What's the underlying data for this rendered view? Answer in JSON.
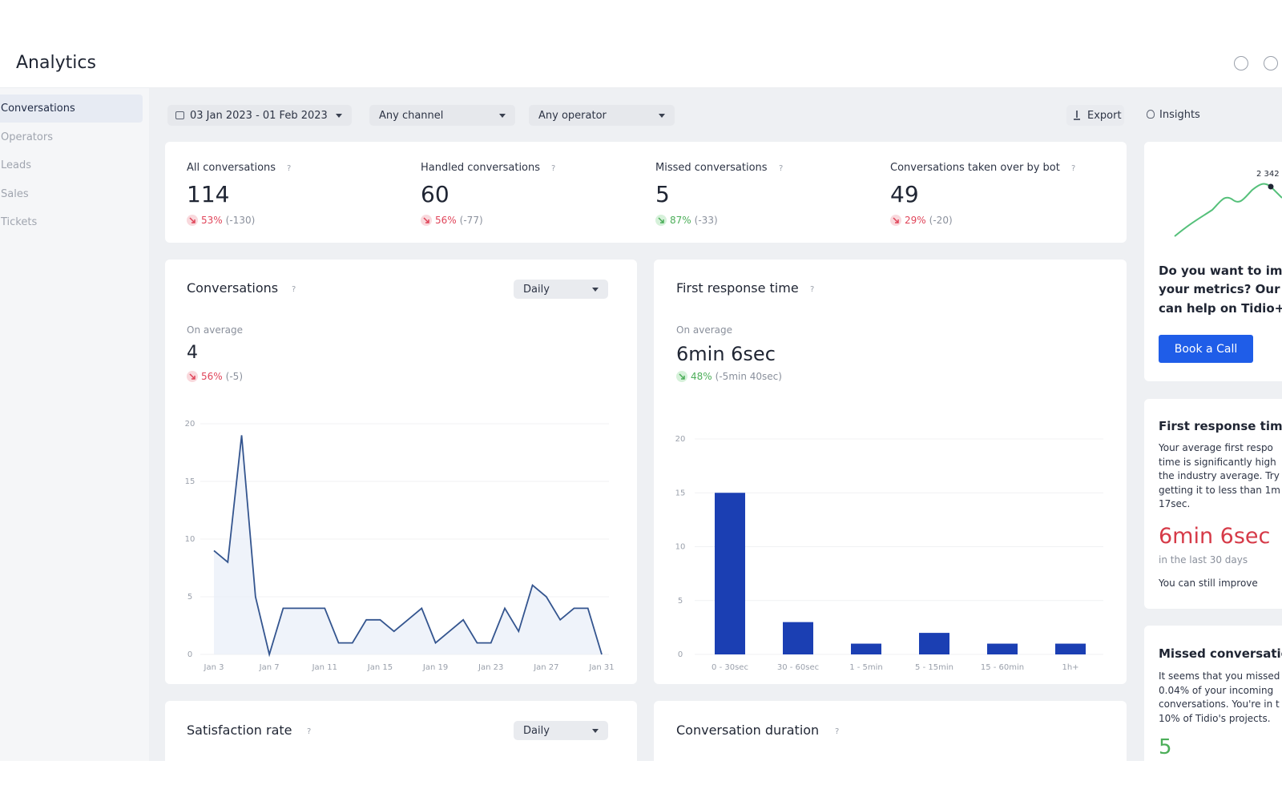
{
  "help": "?",
  "header": {
    "title": "Analytics"
  },
  "sidebar": {
    "items": [
      "Conversations",
      "Operators",
      "Leads",
      "Sales",
      "Tickets"
    ]
  },
  "filters": {
    "date": "03 Jan 2023 - 01 Feb 2023",
    "channel": "Any channel",
    "operator": "Any operator",
    "export": "Export",
    "insights": "Insights"
  },
  "kpis": [
    {
      "label": "All conversations",
      "value": 114,
      "pct": "53%",
      "change": "(-130)",
      "trend": "bad"
    },
    {
      "label": "Handled conversations",
      "value": 60,
      "pct": "56%",
      "change": "(-77)",
      "trend": "bad"
    },
    {
      "label": "Missed conversations",
      "value": 5,
      "pct": "87%",
      "change": "(-33)",
      "trend": "good"
    },
    {
      "label": "Conversations taken over by bot",
      "value": 49,
      "pct": "29%",
      "change": "(-20)",
      "trend": "bad"
    }
  ],
  "panels": [
    {
      "title": "Conversations",
      "dropdown": "Daily",
      "avg_label": "On average",
      "avg": "4",
      "pct": "56%",
      "change": "(-5)",
      "trend": "bad"
    },
    {
      "title": "First response time",
      "avg_label": "On average",
      "avg": "6min 6sec",
      "pct": "48%",
      "change": "(-5min 40sec)",
      "trend": "good"
    },
    {
      "title": "Satisfaction rate",
      "dropdown": "Daily"
    },
    {
      "title": "Conversation duration"
    }
  ],
  "insights": {
    "spark_label": "2 342",
    "promo_lines": [
      "Do you want to imp",
      "your metrics? Our t",
      "can help on Tidio+"
    ],
    "button": "Book a Call",
    "frt": {
      "title": "First response time",
      "lines": [
        "Your average first respo",
        "time is significantly high",
        "the industry average. Try",
        "getting it to less than 1m",
        "17sec."
      ],
      "value": "6min 6sec",
      "period": "in the last 30 days",
      "note": "You can still improve"
    },
    "missed": {
      "title": "Missed conversatio",
      "lines": [
        "It seems that you missed",
        "0.04% of your incoming",
        "conversations. You're in t",
        "10% of Tidio's projects."
      ],
      "value": "5"
    }
  },
  "chart_data": [
    {
      "type": "line",
      "color": "#34558f",
      "grid": true,
      "categories": [
        "Jan 3",
        null,
        null,
        null,
        "Jan 7",
        null,
        null,
        null,
        "Jan 11",
        null,
        null,
        null,
        "Jan 15",
        null,
        null,
        null,
        "Jan 19",
        null,
        null,
        null,
        "Jan 23",
        null,
        null,
        null,
        "Jan 27",
        null,
        null,
        null,
        "Jan 31"
      ],
      "values": [
        9,
        8,
        19,
        5,
        0,
        4,
        4,
        4,
        4,
        1,
        1,
        3,
        3,
        2,
        3,
        4,
        1,
        2,
        3,
        1,
        1,
        4,
        2,
        6,
        5,
        3,
        4,
        4,
        0
      ],
      "ylim": [
        0,
        20
      ],
      "yticks": [
        0,
        5,
        10,
        15,
        20
      ]
    },
    {
      "type": "bar",
      "color": "#1b3fb3",
      "grid": true,
      "categories": [
        "0 - 30sec",
        "30 - 60sec",
        "1 - 5min",
        "5 - 15min",
        "15 - 60min",
        "1h+"
      ],
      "values": [
        15,
        3,
        1,
        2,
        1,
        1
      ],
      "ylim": [
        0,
        20
      ],
      "yticks": [
        0,
        5,
        10,
        15,
        20
      ]
    }
  ]
}
